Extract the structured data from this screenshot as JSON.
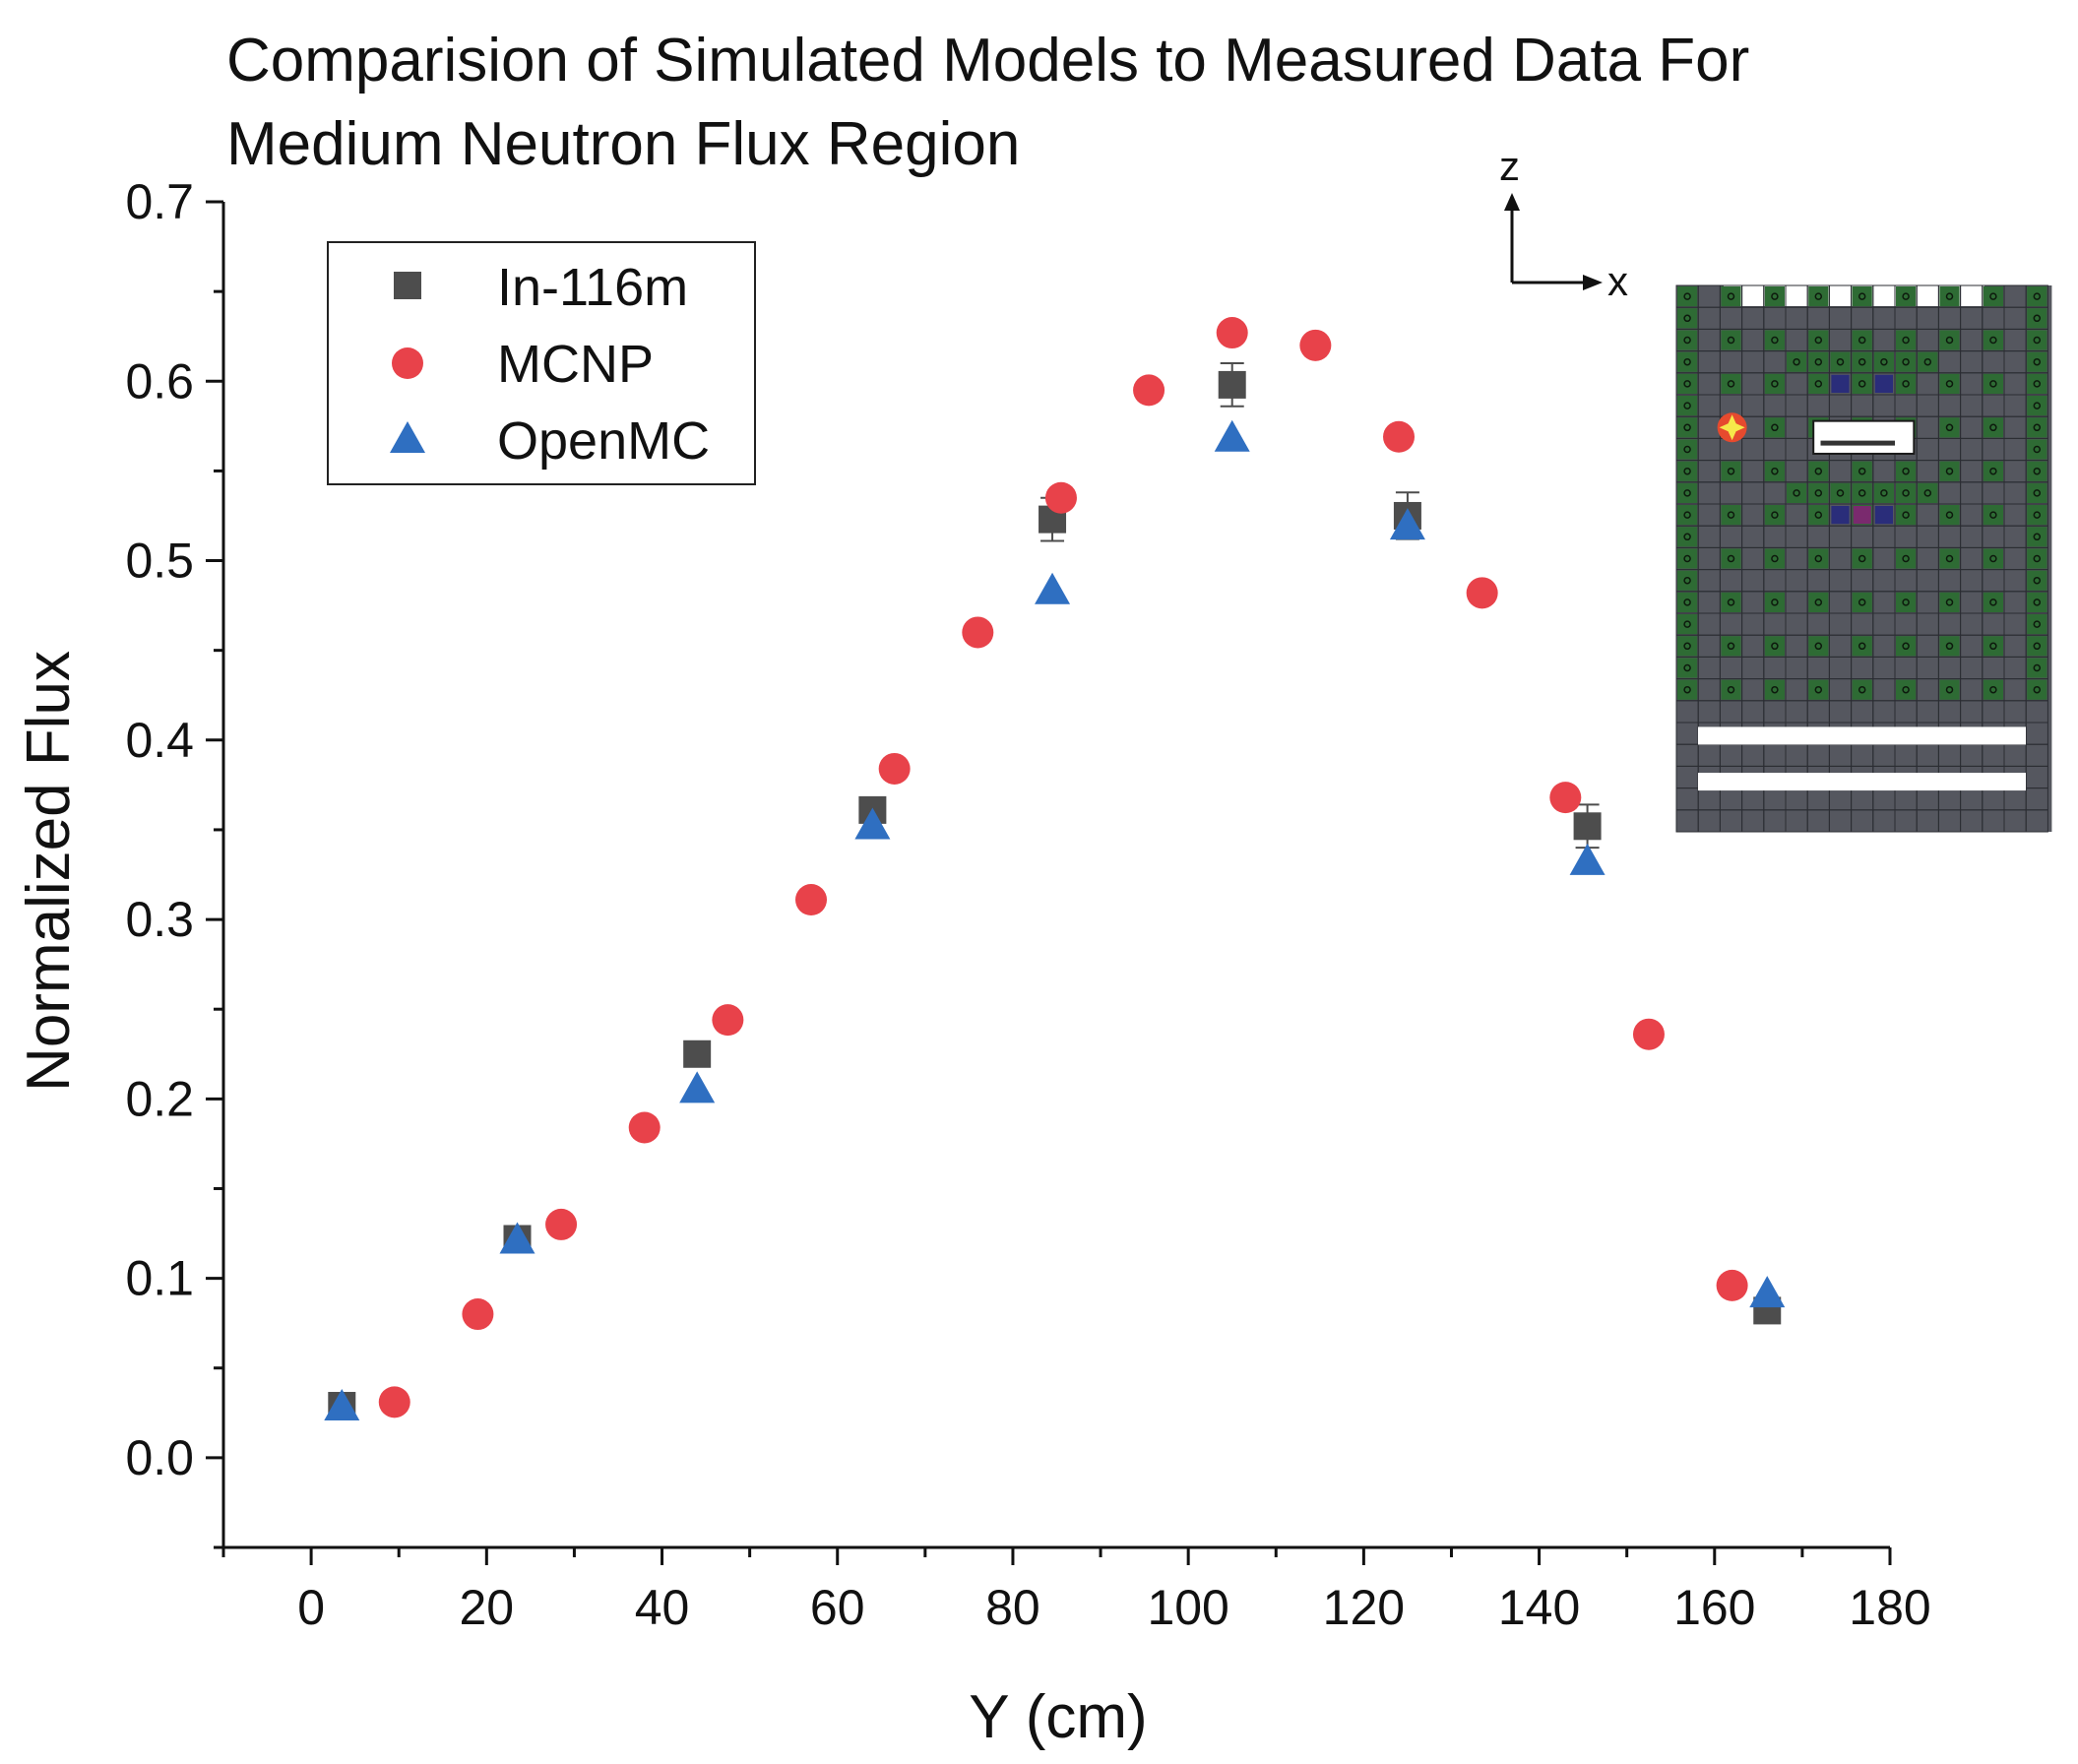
{
  "chart_data": {
    "type": "scatter",
    "title_lines": [
      "Comparision of Simulated Models to Measured Data For",
      "Medium Neutron Flux Region"
    ],
    "xlabel": "Y (cm)",
    "ylabel": "Normalized Flux",
    "xlim": [
      -10,
      180
    ],
    "ylim": [
      -0.05,
      0.7
    ],
    "xticks": [
      0,
      20,
      40,
      60,
      80,
      100,
      120,
      140,
      160,
      180
    ],
    "yticks": [
      0.0,
      0.1,
      0.2,
      0.3,
      0.4,
      0.5,
      0.6,
      0.7
    ],
    "xtick_labels": [
      "0",
      "20",
      "40",
      "60",
      "80",
      "100",
      "120",
      "140",
      "160",
      "180"
    ],
    "ytick_labels": [
      "0.0",
      "0.1",
      "0.2",
      "0.3",
      "0.4",
      "0.5",
      "0.6",
      "0.7"
    ],
    "legend_position": "top-left",
    "series": [
      {
        "name": "In-116m",
        "marker": "square",
        "color": "#4d4d4d",
        "x": [
          3.5,
          23.5,
          44,
          64,
          84.5,
          105,
          125,
          145.5,
          166
        ],
        "y": [
          0.029,
          0.122,
          0.225,
          0.361,
          0.523,
          0.598,
          0.525,
          0.352,
          0.082
        ],
        "yerr": [
          0.002,
          0.004,
          0.004,
          0.005,
          0.012,
          0.012,
          0.013,
          0.012,
          0.003
        ]
      },
      {
        "name": "MCNP",
        "marker": "circle",
        "color": "#e8424a",
        "x": [
          9.5,
          19,
          28.5,
          38,
          47.5,
          57,
          66.5,
          76,
          85.5,
          95.5,
          105,
          114.5,
          124,
          133.5,
          143,
          152.5,
          162
        ],
        "y": [
          0.031,
          0.08,
          0.13,
          0.184,
          0.244,
          0.311,
          0.384,
          0.46,
          0.535,
          0.595,
          0.627,
          0.62,
          0.569,
          0.482,
          0.368,
          0.236,
          0.096
        ]
      },
      {
        "name": "OpenMC",
        "marker": "triangle",
        "color": "#2f6fc1",
        "x": [
          3.5,
          23.5,
          44,
          64,
          84.5,
          105,
          125,
          145.5,
          166
        ],
        "y": [
          0.029,
          0.122,
          0.206,
          0.353,
          0.484,
          0.569,
          0.52,
          0.333,
          0.092
        ]
      }
    ],
    "inset": {
      "description_labels": [
        "z",
        "x"
      ]
    }
  }
}
